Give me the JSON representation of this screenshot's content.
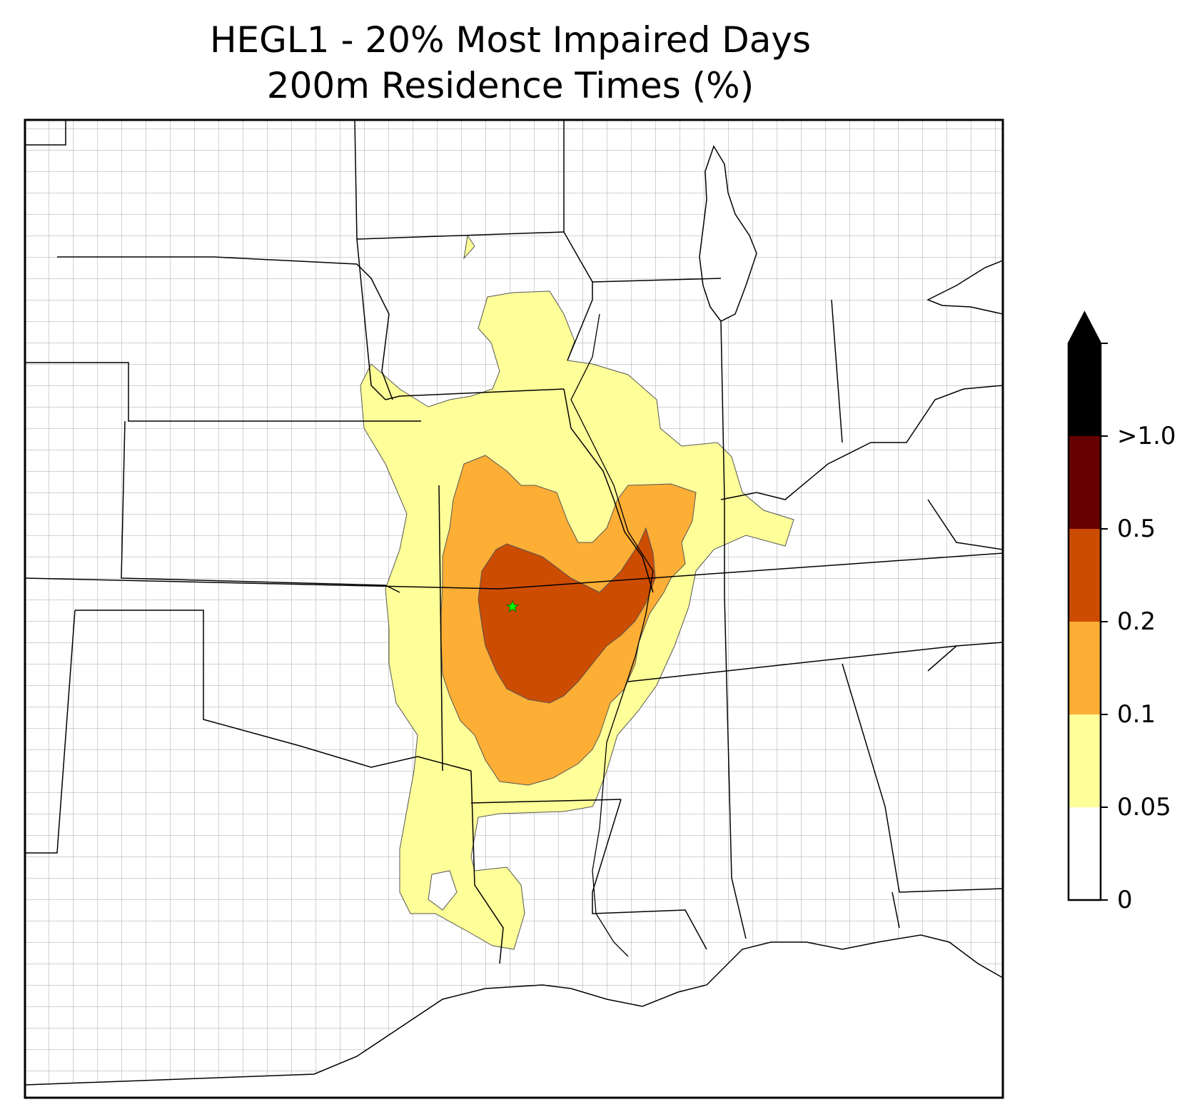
{
  "title": {
    "line1": "HEGL1 - 20% Most Impaired Days",
    "line2": "200m Residence Times (%)"
  },
  "colorbar": {
    "levels": [
      {
        "label": "0",
        "color": "#ffffff"
      },
      {
        "label": "0.05",
        "color": "#ffff99"
      },
      {
        "label": "0.1",
        "color": "#fdae35"
      },
      {
        "label": "0.2",
        "color": "#cc4c02"
      },
      {
        "label": "0.5",
        "color": "#660000"
      },
      {
        "label": ">1.0",
        "color": "#000000"
      }
    ],
    "extend": "max"
  },
  "map": {
    "region": "central-southern United States with state and county boundaries",
    "receptor_marker": {
      "symbol": "star",
      "color": "#00ff00"
    }
  }
}
